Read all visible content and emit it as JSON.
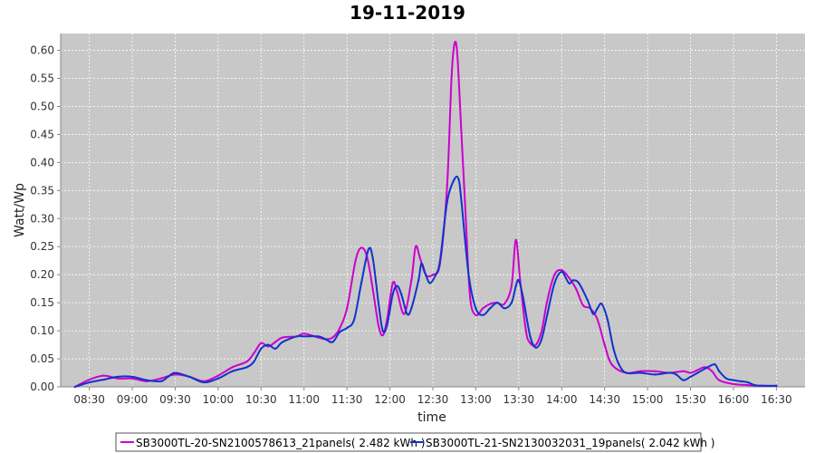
{
  "chart_data": {
    "type": "line",
    "title": "19-11-2019",
    "xlabel": "time",
    "ylabel": "Watt/Wp",
    "xlim": [
      "08:10",
      "16:50"
    ],
    "ylim": [
      0,
      0.63
    ],
    "grid": true,
    "legend_position": "bottom",
    "x_ticks": [
      "08:30",
      "09:00",
      "09:30",
      "10:00",
      "10:30",
      "11:00",
      "11:30",
      "12:00",
      "12:30",
      "13:00",
      "13:30",
      "14:00",
      "14:30",
      "15:00",
      "15:30",
      "16:00",
      "16:30"
    ],
    "y_ticks": [
      "0.00",
      "0.05",
      "0.10",
      "0.15",
      "0.20",
      "0.25",
      "0.30",
      "0.35",
      "0.40",
      "0.45",
      "0.50",
      "0.55",
      "0.60"
    ],
    "series": [
      {
        "name": "SB3000TL-20-SN2100578613_21panels( 2.482 kWh )",
        "color": "#cc00cc",
        "points": [
          [
            "08:20",
            0.0
          ],
          [
            "08:30",
            0.013
          ],
          [
            "08:40",
            0.02
          ],
          [
            "08:50",
            0.015
          ],
          [
            "09:00",
            0.015
          ],
          [
            "09:10",
            0.01
          ],
          [
            "09:20",
            0.015
          ],
          [
            "09:30",
            0.022
          ],
          [
            "09:40",
            0.018
          ],
          [
            "09:50",
            0.01
          ],
          [
            "10:00",
            0.02
          ],
          [
            "10:10",
            0.035
          ],
          [
            "10:20",
            0.045
          ],
          [
            "10:25",
            0.06
          ],
          [
            "10:30",
            0.078
          ],
          [
            "10:35",
            0.072
          ],
          [
            "10:40",
            0.08
          ],
          [
            "10:45",
            0.088
          ],
          [
            "10:55",
            0.09
          ],
          [
            "11:00",
            0.095
          ],
          [
            "11:10",
            0.088
          ],
          [
            "11:15",
            0.085
          ],
          [
            "11:20",
            0.088
          ],
          [
            "11:25",
            0.105
          ],
          [
            "11:30",
            0.14
          ],
          [
            "11:36",
            0.225
          ],
          [
            "11:40",
            0.248
          ],
          [
            "11:44",
            0.232
          ],
          [
            "11:48",
            0.175
          ],
          [
            "11:52",
            0.11
          ],
          [
            "11:55",
            0.092
          ],
          [
            "11:58",
            0.12
          ],
          [
            "12:02",
            0.185
          ],
          [
            "12:05",
            0.17
          ],
          [
            "12:10",
            0.13
          ],
          [
            "12:15",
            0.19
          ],
          [
            "12:18",
            0.25
          ],
          [
            "12:21",
            0.23
          ],
          [
            "12:25",
            0.2
          ],
          [
            "12:30",
            0.2
          ],
          [
            "12:35",
            0.22
          ],
          [
            "12:40",
            0.36
          ],
          [
            "12:43",
            0.55
          ],
          [
            "12:45",
            0.61
          ],
          [
            "12:47",
            0.595
          ],
          [
            "12:50",
            0.45
          ],
          [
            "12:53",
            0.3
          ],
          [
            "12:56",
            0.16
          ],
          [
            "13:00",
            0.128
          ],
          [
            "13:05",
            0.14
          ],
          [
            "13:10",
            0.148
          ],
          [
            "13:15",
            0.15
          ],
          [
            "13:20",
            0.148
          ],
          [
            "13:25",
            0.18
          ],
          [
            "13:28",
            0.262
          ],
          [
            "13:31",
            0.19
          ],
          [
            "13:35",
            0.1
          ],
          [
            "13:38",
            0.078
          ],
          [
            "13:42",
            0.075
          ],
          [
            "13:46",
            0.1
          ],
          [
            "13:50",
            0.155
          ],
          [
            "13:55",
            0.2
          ],
          [
            "14:00",
            0.208
          ],
          [
            "14:05",
            0.195
          ],
          [
            "14:10",
            0.175
          ],
          [
            "14:15",
            0.145
          ],
          [
            "14:20",
            0.14
          ],
          [
            "14:25",
            0.12
          ],
          [
            "14:30",
            0.075
          ],
          [
            "14:35",
            0.04
          ],
          [
            "14:45",
            0.025
          ],
          [
            "14:55",
            0.028
          ],
          [
            "15:05",
            0.028
          ],
          [
            "15:15",
            0.025
          ],
          [
            "15:25",
            0.028
          ],
          [
            "15:30",
            0.025
          ],
          [
            "15:35",
            0.03
          ],
          [
            "15:40",
            0.035
          ],
          [
            "15:45",
            0.028
          ],
          [
            "15:50",
            0.012
          ],
          [
            "16:00",
            0.005
          ],
          [
            "16:10",
            0.003
          ],
          [
            "16:20",
            0.002
          ],
          [
            "16:30",
            0.002
          ]
        ]
      },
      {
        "name": "SB3000TL-21-SN2130032031_19panels( 2.042 kWh )",
        "color": "#1133cc",
        "points": [
          [
            "08:20",
            0.0
          ],
          [
            "08:30",
            0.008
          ],
          [
            "08:40",
            0.013
          ],
          [
            "08:50",
            0.018
          ],
          [
            "09:00",
            0.018
          ],
          [
            "09:10",
            0.012
          ],
          [
            "09:20",
            0.01
          ],
          [
            "09:25",
            0.018
          ],
          [
            "09:30",
            0.025
          ],
          [
            "09:40",
            0.018
          ],
          [
            "09:50",
            0.008
          ],
          [
            "10:00",
            0.015
          ],
          [
            "10:10",
            0.028
          ],
          [
            "10:20",
            0.035
          ],
          [
            "10:25",
            0.045
          ],
          [
            "10:30",
            0.068
          ],
          [
            "10:35",
            0.075
          ],
          [
            "10:40",
            0.068
          ],
          [
            "10:45",
            0.08
          ],
          [
            "10:55",
            0.09
          ],
          [
            "11:00",
            0.09
          ],
          [
            "11:10",
            0.09
          ],
          [
            "11:15",
            0.085
          ],
          [
            "11:20",
            0.08
          ],
          [
            "11:25",
            0.098
          ],
          [
            "11:30",
            0.105
          ],
          [
            "11:35",
            0.12
          ],
          [
            "11:40",
            0.185
          ],
          [
            "11:45",
            0.245
          ],
          [
            "11:48",
            0.23
          ],
          [
            "11:52",
            0.15
          ],
          [
            "11:55",
            0.1
          ],
          [
            "11:58",
            0.11
          ],
          [
            "12:02",
            0.165
          ],
          [
            "12:05",
            0.18
          ],
          [
            "12:08",
            0.165
          ],
          [
            "12:12",
            0.13
          ],
          [
            "12:15",
            0.14
          ],
          [
            "12:20",
            0.19
          ],
          [
            "12:22",
            0.22
          ],
          [
            "12:25",
            0.2
          ],
          [
            "12:28",
            0.185
          ],
          [
            "12:32",
            0.2
          ],
          [
            "12:35",
            0.225
          ],
          [
            "12:40",
            0.33
          ],
          [
            "12:45",
            0.37
          ],
          [
            "12:48",
            0.37
          ],
          [
            "12:50",
            0.33
          ],
          [
            "12:55",
            0.2
          ],
          [
            "13:00",
            0.14
          ],
          [
            "13:05",
            0.128
          ],
          [
            "13:10",
            0.14
          ],
          [
            "13:15",
            0.15
          ],
          [
            "13:20",
            0.14
          ],
          [
            "13:25",
            0.15
          ],
          [
            "13:28",
            0.18
          ],
          [
            "13:30",
            0.19
          ],
          [
            "13:33",
            0.16
          ],
          [
            "13:38",
            0.09
          ],
          [
            "13:42",
            0.07
          ],
          [
            "13:46",
            0.085
          ],
          [
            "13:50",
            0.13
          ],
          [
            "13:55",
            0.185
          ],
          [
            "14:00",
            0.205
          ],
          [
            "14:05",
            0.185
          ],
          [
            "14:08",
            0.19
          ],
          [
            "14:12",
            0.185
          ],
          [
            "14:18",
            0.155
          ],
          [
            "14:22",
            0.13
          ],
          [
            "14:25",
            0.14
          ],
          [
            "14:28",
            0.148
          ],
          [
            "14:32",
            0.12
          ],
          [
            "14:36",
            0.07
          ],
          [
            "14:40",
            0.04
          ],
          [
            "14:45",
            0.025
          ],
          [
            "14:55",
            0.025
          ],
          [
            "15:05",
            0.022
          ],
          [
            "15:15",
            0.025
          ],
          [
            "15:20",
            0.022
          ],
          [
            "15:25",
            0.012
          ],
          [
            "15:30",
            0.018
          ],
          [
            "15:35",
            0.025
          ],
          [
            "15:42",
            0.035
          ],
          [
            "15:47",
            0.04
          ],
          [
            "15:50",
            0.028
          ],
          [
            "15:55",
            0.015
          ],
          [
            "16:00",
            0.012
          ],
          [
            "16:05",
            0.01
          ],
          [
            "16:10",
            0.008
          ],
          [
            "16:15",
            0.003
          ],
          [
            "16:20",
            0.002
          ],
          [
            "16:30",
            0.002
          ]
        ]
      }
    ]
  }
}
